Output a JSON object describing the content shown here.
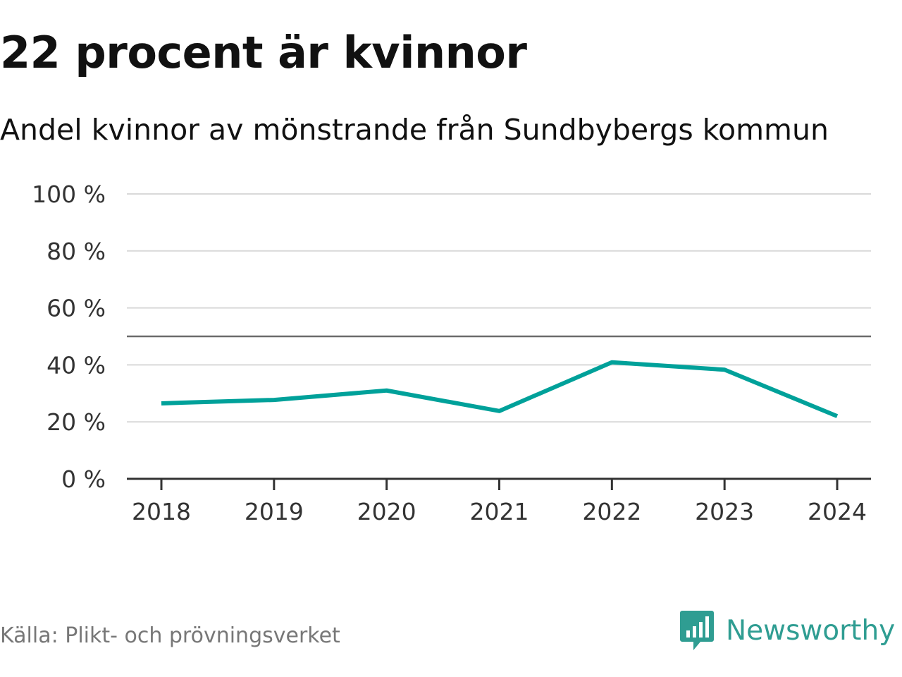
{
  "title": "22 procent är kvinnor",
  "subtitle": "Andel kvinnor av mönstrande från Sundbybergs kommun",
  "source": "Källa: Plikt- och prövningsverket",
  "brand": {
    "name": "Newsworthy",
    "icon": "bar-chart-speech-bubble-icon",
    "color": "#2f9d92"
  },
  "colors": {
    "line": "#00a19a",
    "grid": "#d9d9d9",
    "reference": "#6b6b6b",
    "axis": "#333333"
  },
  "chart_data": {
    "type": "line",
    "title": "22 procent är kvinnor",
    "subtitle": "Andel kvinnor av mönstrande från Sundbybergs kommun",
    "xlabel": "",
    "ylabel": "",
    "categories": [
      "2018",
      "2019",
      "2020",
      "2021",
      "2022",
      "2023",
      "2024"
    ],
    "series": [
      {
        "values": [
          26.5,
          27.7,
          31,
          23.8,
          40.9,
          38.3,
          22
        ]
      }
    ],
    "ylim": [
      0,
      100
    ],
    "yticks": [
      0,
      20,
      40,
      60,
      80,
      100
    ],
    "ytick_labels": [
      "0 %",
      "20 %",
      "40 %",
      "60 %",
      "80 %",
      "100 %"
    ],
    "reference_line": 50,
    "grid": true,
    "legend": "none"
  }
}
